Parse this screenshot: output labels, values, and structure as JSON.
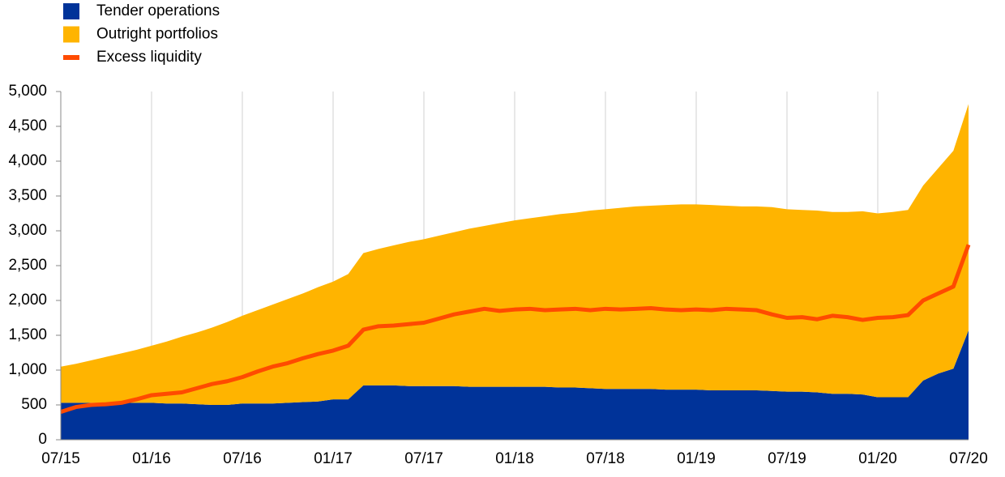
{
  "chart_data": {
    "type": "stacked_area_line",
    "categories": [
      "07/15",
      null,
      null,
      null,
      null,
      null,
      "01/16",
      null,
      null,
      null,
      null,
      null,
      "07/16",
      null,
      null,
      null,
      null,
      null,
      "01/17",
      null,
      null,
      null,
      null,
      null,
      "07/17",
      null,
      null,
      null,
      null,
      null,
      "01/18",
      null,
      null,
      null,
      null,
      null,
      "07/18",
      null,
      null,
      null,
      null,
      null,
      "01/19",
      null,
      null,
      null,
      null,
      null,
      "07/19",
      null,
      null,
      null,
      null,
      null,
      "01/20",
      null,
      null,
      null,
      null,
      null,
      "07/20"
    ],
    "series": [
      {
        "name": "Tender operations",
        "color": "#003399",
        "kind": "area",
        "values": [
          530,
          530,
          530,
          530,
          530,
          530,
          530,
          520,
          520,
          510,
          500,
          500,
          520,
          520,
          520,
          530,
          540,
          550,
          580,
          580,
          780,
          780,
          780,
          770,
          770,
          770,
          770,
          760,
          760,
          760,
          760,
          760,
          760,
          750,
          750,
          740,
          730,
          730,
          730,
          730,
          720,
          720,
          720,
          710,
          710,
          710,
          710,
          700,
          690,
          690,
          680,
          660,
          660,
          650,
          610,
          610,
          610,
          850,
          950,
          1020,
          1570
        ]
      },
      {
        "name": "Outright portfolios",
        "color": "#ffb400",
        "kind": "area",
        "values": [
          520,
          560,
          610,
          660,
          710,
          760,
          820,
          890,
          960,
          1030,
          1110,
          1190,
          1260,
          1340,
          1420,
          1490,
          1560,
          1640,
          1690,
          1800,
          1900,
          1960,
          2010,
          2070,
          2110,
          2160,
          2210,
          2270,
          2310,
          2350,
          2390,
          2420,
          2450,
          2490,
          2510,
          2550,
          2580,
          2600,
          2620,
          2630,
          2650,
          2660,
          2660,
          2660,
          2650,
          2640,
          2640,
          2640,
          2620,
          2610,
          2610,
          2610,
          2610,
          2630,
          2640,
          2660,
          2690,
          2800,
          2950,
          3130,
          3250
        ]
      },
      {
        "name": "Excess liquidity",
        "color": "#ff4b00",
        "kind": "line",
        "values": [
          400,
          470,
          500,
          510,
          530,
          580,
          640,
          660,
          680,
          740,
          800,
          840,
          900,
          980,
          1050,
          1100,
          1170,
          1230,
          1280,
          1350,
          1580,
          1630,
          1640,
          1660,
          1680,
          1740,
          1800,
          1840,
          1880,
          1850,
          1870,
          1880,
          1860,
          1870,
          1880,
          1860,
          1880,
          1870,
          1880,
          1890,
          1870,
          1860,
          1870,
          1860,
          1880,
          1870,
          1860,
          1800,
          1750,
          1760,
          1730,
          1780,
          1760,
          1720,
          1750,
          1760,
          1790,
          2000,
          2100,
          2200,
          2800
        ]
      }
    ],
    "ylim": [
      0,
      5000
    ],
    "yticks": [
      0,
      500,
      {
        "value": 1000,
        "label": "1,000"
      },
      {
        "value": 1500,
        "label": "1,500"
      },
      {
        "value": 2000,
        "label": "2,000"
      },
      {
        "value": 2500,
        "label": "2,500"
      },
      {
        "value": 3000,
        "label": "3,000"
      },
      {
        "value": 3500,
        "label": "3,500"
      },
      {
        "value": 4000,
        "label": "4,000"
      },
      {
        "value": 4500,
        "label": "4,500"
      },
      {
        "value": 5000,
        "label": "5,000"
      }
    ],
    "grid": "x",
    "legend": "top-left"
  }
}
